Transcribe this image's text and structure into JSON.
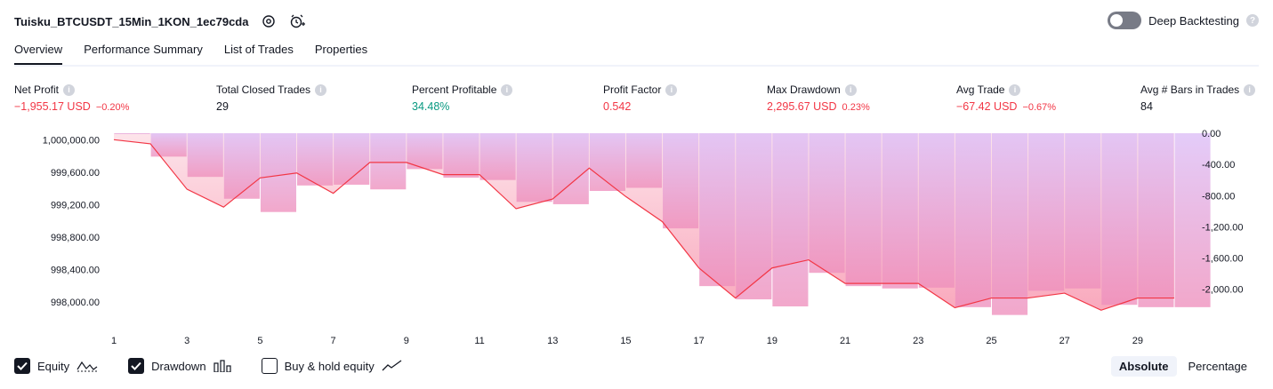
{
  "header": {
    "strategy_name": "Tuisku_BTCUSDT_15Min_1KON_1ec79cda"
  },
  "deep_backtesting": {
    "label": "Deep Backtesting",
    "enabled": false
  },
  "tabs": [
    {
      "label": "Overview",
      "active": true
    },
    {
      "label": "Performance Summary",
      "active": false
    },
    {
      "label": "List of Trades",
      "active": false
    },
    {
      "label": "Properties",
      "active": false
    }
  ],
  "stats": [
    {
      "label": "Net Profit",
      "value": "−1,955.17 USD",
      "pct": "−0.20%",
      "tone": "neg"
    },
    {
      "label": "Total Closed Trades",
      "value": "29",
      "pct": "",
      "tone": "neutral"
    },
    {
      "label": "Percent Profitable",
      "value": "34.48%",
      "pct": "",
      "tone": "pos"
    },
    {
      "label": "Profit Factor",
      "value": "0.542",
      "pct": "",
      "tone": "neg"
    },
    {
      "label": "Max Drawdown",
      "value": "2,295.67 USD",
      "pct": "0.23%",
      "tone": "neg"
    },
    {
      "label": "Avg Trade",
      "value": "−67.42 USD",
      "pct": "−0.67%",
      "tone": "neg"
    },
    {
      "label": "Avg # Bars in Trades",
      "value": "84",
      "pct": "",
      "tone": "neutral"
    }
  ],
  "chart_data": {
    "type": "line",
    "left_axis": {
      "ylim": [
        997870,
        1000080
      ],
      "ticks": [
        "1,000,000.00",
        "999,600.00",
        "999,200.00",
        "998,800.00",
        "998,400.00",
        "998,000.00"
      ],
      "tick_values": [
        1000000,
        999600,
        999200,
        998800,
        998400,
        998000
      ]
    },
    "right_axis": {
      "ylim": [
        -2300,
        0
      ],
      "ticks": [
        "0.00",
        "-400.00",
        "-800.00",
        "-1,200.00",
        "-1,600.00",
        "-2,000.00"
      ],
      "tick_values": [
        0,
        -400,
        -800,
        -1200,
        -1600,
        -2000
      ]
    },
    "x_ticks": [
      "1",
      "3",
      "5",
      "7",
      "9",
      "11",
      "13",
      "15",
      "17",
      "19",
      "21",
      "23",
      "25",
      "27",
      "29"
    ],
    "x_tick_values": [
      1,
      3,
      5,
      7,
      9,
      11,
      13,
      15,
      17,
      19,
      21,
      23,
      25,
      27,
      29
    ],
    "series": [
      {
        "name": "Equity",
        "color": "#f23645",
        "x": [
          1,
          2,
          3,
          4,
          5,
          6,
          7,
          8,
          9,
          10,
          11,
          12,
          13,
          14,
          15,
          16,
          17,
          18,
          19,
          20,
          21,
          22,
          23,
          24,
          25,
          26,
          27,
          28,
          29,
          30
        ],
        "values": [
          1000000,
          999950,
          999390,
          999170,
          999530,
          999590,
          999340,
          999720,
          999720,
          999570,
          999570,
          999150,
          999270,
          999650,
          999300,
          998990,
          998420,
          998050,
          998420,
          998520,
          998230,
          998230,
          998230,
          997930,
          998050,
          998050,
          998110,
          997900,
          998050,
          998050
        ]
      },
      {
        "name": "Drawdown",
        "color": "#c9a8f0",
        "x": [
          1,
          2,
          3,
          4,
          5,
          6,
          7,
          8,
          9,
          10,
          11,
          12,
          13,
          14,
          15,
          16,
          17,
          18,
          19,
          20,
          21,
          22,
          23,
          24,
          25,
          26,
          27,
          28,
          29,
          30
        ],
        "values": [
          -10,
          -300,
          -560,
          -840,
          -1010,
          -670,
          -660,
          -720,
          -460,
          -570,
          -600,
          -880,
          -910,
          -740,
          -700,
          -1220,
          -1960,
          -2130,
          -2220,
          -1790,
          -1960,
          -1990,
          -1980,
          -2230,
          -2330,
          -2020,
          -1990,
          -2200,
          -2230,
          -2230
        ]
      }
    ],
    "legend": [
      {
        "label": "Equity",
        "checked": true,
        "icon": "equity-line-icon"
      },
      {
        "label": "Drawdown",
        "checked": true,
        "icon": "drawdown-bars-icon"
      },
      {
        "label": "Buy & hold equity",
        "checked": false,
        "icon": "buyhold-line-icon"
      }
    ],
    "grid": false
  },
  "modes": [
    {
      "label": "Absolute",
      "active": true
    },
    {
      "label": "Percentage",
      "active": false
    }
  ]
}
